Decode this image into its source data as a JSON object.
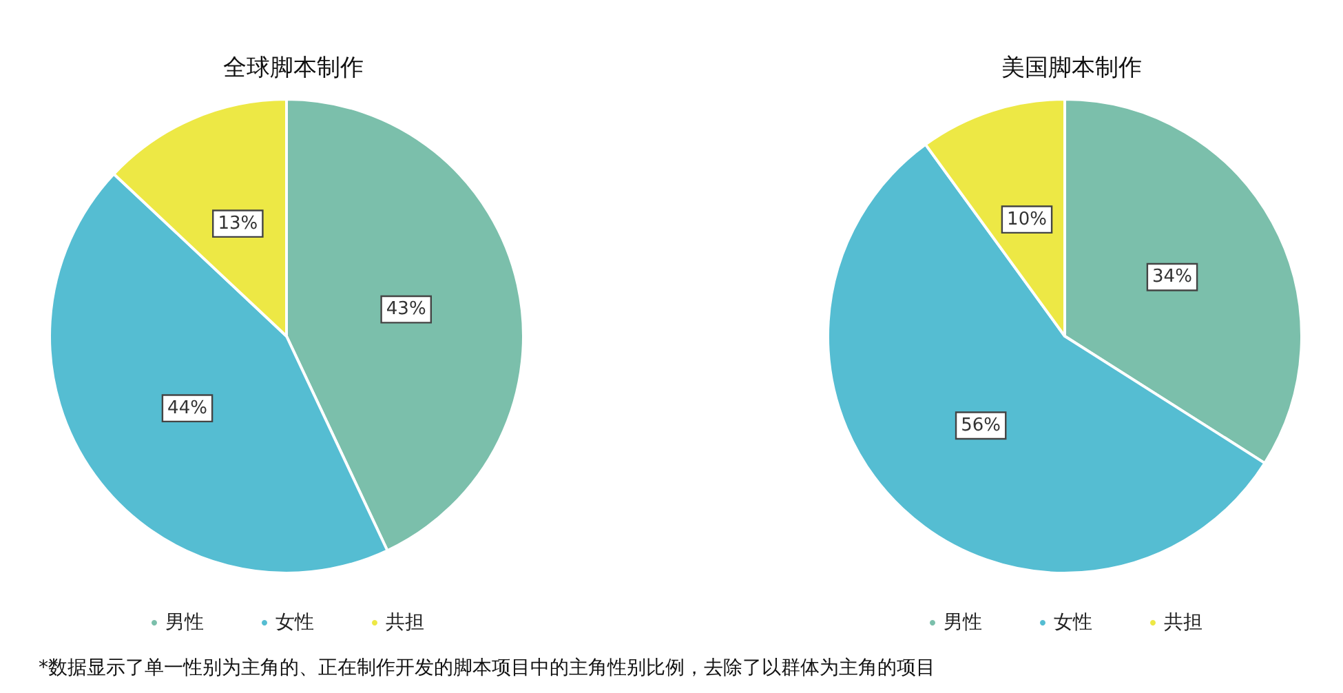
{
  "chart_data": [
    {
      "type": "pie",
      "title": "全球脚本制作",
      "categories": [
        "男性",
        "女性",
        "共担"
      ],
      "values": [
        43,
        44,
        13
      ],
      "value_labels": [
        "43%",
        "44%",
        "13%"
      ],
      "colors": [
        "#7bbfab",
        "#55bdd2",
        "#ede845"
      ],
      "legend": "bottom",
      "annotations": [
        "*数据显示了单一性别为主角的、正在制作开发的脚本项目中的主角性别比例，去除了以群体为主角的项目"
      ]
    },
    {
      "type": "pie",
      "title": "美国脚本制作",
      "categories": [
        "男性",
        "女性",
        "共担"
      ],
      "values": [
        34,
        56,
        10
      ],
      "value_labels": [
        "34%",
        "56%",
        "10%"
      ],
      "colors": [
        "#7bbfab",
        "#55bdd2",
        "#ede845"
      ],
      "legend": "bottom"
    }
  ]
}
